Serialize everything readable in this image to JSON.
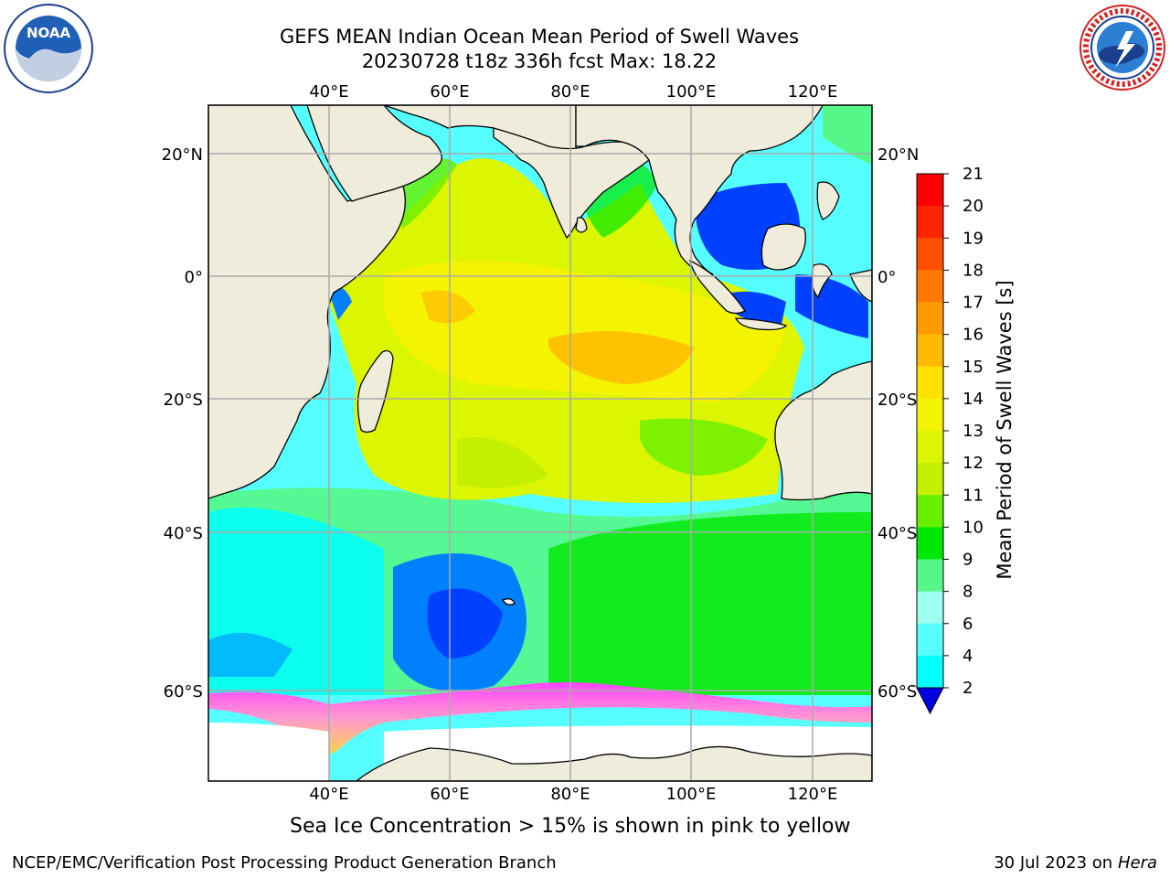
{
  "title": {
    "line1": "GEFS MEAN Indian Ocean Mean Period of Swell Waves",
    "line2": "20230728 t18z 336h fcst   Max: 18.22"
  },
  "logos": {
    "left": {
      "icon": "noaa-logo",
      "text": "NOAA",
      "ring_text": "NATIONAL OCEANIC AND ATMOSPHERIC ADMINISTRATION · U.S. DEPARTMENT OF COMMERCE"
    },
    "right": {
      "icon": "nws-logo",
      "ring_text": "NATIONAL WEATHER SERVICE"
    }
  },
  "map": {
    "lon_ticks_top": [
      "40°E",
      "60°E",
      "80°E",
      "100°E",
      "120°E"
    ],
    "lon_ticks_bottom": [
      "40°E",
      "60°E",
      "80°E",
      "100°E",
      "120°E"
    ],
    "lat_ticks_left": [
      "20°N",
      "0°",
      "20°S",
      "40°S",
      "60°S"
    ],
    "lat_ticks_right": [
      "20°N",
      "0°",
      "20°S",
      "40°S",
      "60°S"
    ],
    "lon_values": [
      40,
      60,
      80,
      100,
      120
    ],
    "lat_values": [
      20,
      0,
      -20,
      -40,
      -60
    ],
    "extent": {
      "lon_min": 20,
      "lon_max": 130,
      "lat_min": -70,
      "lat_max": 28
    },
    "land_color": "#efecdc",
    "sea_ice_color_range": [
      "#ff44ff",
      "#ffd24a"
    ],
    "grid": true
  },
  "colorbar": {
    "label": "Mean Period of Swell Waves [s]",
    "ticks": [
      "21",
      "20",
      "19",
      "18",
      "17",
      "16",
      "15",
      "14",
      "13",
      "12",
      "11",
      "10",
      "9",
      "8",
      "6",
      "4",
      "2"
    ],
    "colors": [
      "#ff0000",
      "#ff2400",
      "#ff4f00",
      "#ff7800",
      "#ff9a00",
      "#ffba00",
      "#ffe200",
      "#f4f400",
      "#dcf500",
      "#c4f000",
      "#66f000",
      "#00e800",
      "#55f888",
      "#9cfff0",
      "#55ffff",
      "#00ffff",
      "#00aaff",
      "#0040ff"
    ],
    "extend_color": "#0000e0"
  },
  "caption": "Sea Ice Concentration > 15% is shown in pink to yellow",
  "footer": {
    "left": "NCEP/EMC/Verification Post Processing Product Generation Branch",
    "right_prefix": "30 Jul 2023 on ",
    "right_host": "Hera"
  }
}
